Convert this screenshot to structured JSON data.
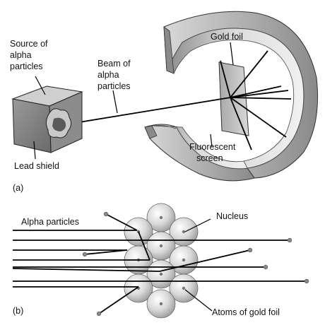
{
  "part_a": {
    "panel_label": "(a)",
    "labels": {
      "source": [
        "Source of",
        "alpha",
        "particles"
      ],
      "beam": [
        "Beam of",
        "alpha",
        "particles"
      ],
      "gold_foil": "Gold foil",
      "lead_shield": "Lead shield",
      "screen": [
        "Fluorescent",
        "screen"
      ]
    }
  },
  "part_b": {
    "panel_label": "(b)",
    "labels": {
      "alpha_particles": "Alpha particles",
      "nucleus": "Nucleus",
      "atoms": "Atoms of gold foil"
    }
  },
  "colors": {
    "metal_light": "#e6e6e6",
    "metal_mid": "#b9b9b9",
    "metal_dark": "#7d7d7d",
    "line": "#000000"
  }
}
